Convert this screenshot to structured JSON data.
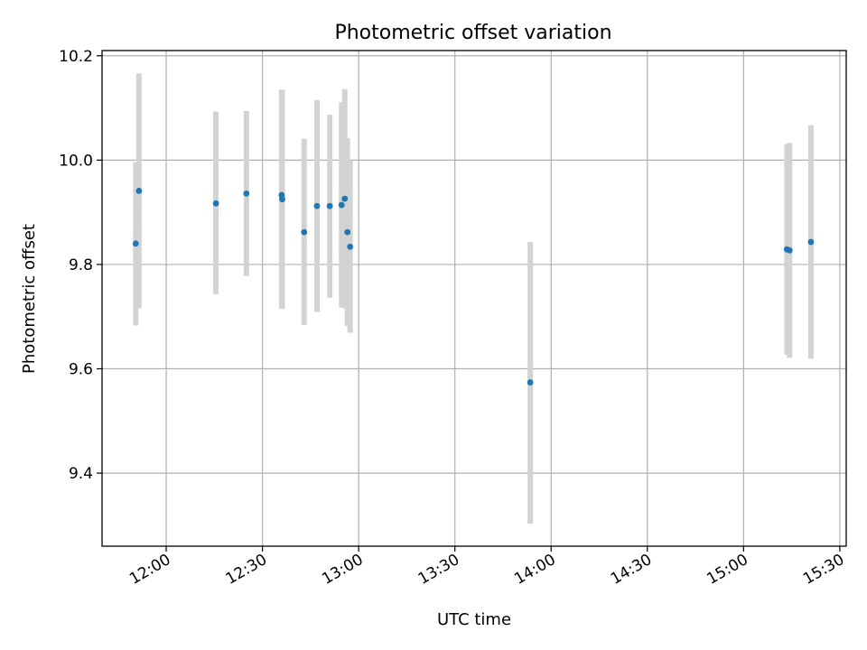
{
  "chart_data": {
    "type": "scatter",
    "title": "Photometric offset variation",
    "xlabel": "UTC time",
    "ylabel": "Photometric offset",
    "xlim": [
      "11:40",
      "15:32"
    ],
    "ylim": [
      9.26,
      10.21
    ],
    "x_ticks": [
      "12:00",
      "12:30",
      "13:00",
      "13:30",
      "14:00",
      "14:30",
      "15:00",
      "15:30"
    ],
    "y_ticks": [
      "9.4",
      "9.6",
      "9.8",
      "10.0",
      "10.2"
    ],
    "grid": true,
    "x_axis_format": "time HH:MM",
    "error_bar_color": "#d3d3d3",
    "point_color": "#1f77b4",
    "points": [
      {
        "t": "11:50:30",
        "y": 9.84,
        "lo": 9.683,
        "hi": 9.996
      },
      {
        "t": "11:51:30",
        "y": 9.941,
        "lo": 9.716,
        "hi": 10.166
      },
      {
        "t": "12:15:30",
        "y": 9.917,
        "lo": 9.743,
        "hi": 10.093
      },
      {
        "t": "12:25:00",
        "y": 9.936,
        "lo": 9.778,
        "hi": 10.094
      },
      {
        "t": "12:36:00",
        "y": 9.933,
        "lo": 9.715,
        "hi": 10.135
      },
      {
        "t": "12:36:10",
        "y": 9.925,
        "lo": 9.715,
        "hi": 10.135
      },
      {
        "t": "12:43:00",
        "y": 9.862,
        "lo": 9.684,
        "hi": 10.041
      },
      {
        "t": "12:47:00",
        "y": 9.912,
        "lo": 9.709,
        "hi": 10.115
      },
      {
        "t": "12:51:00",
        "y": 9.912,
        "lo": 9.736,
        "hi": 10.087
      },
      {
        "t": "12:54:40",
        "y": 9.914,
        "lo": 9.717,
        "hi": 10.111
      },
      {
        "t": "12:55:40",
        "y": 9.926,
        "lo": 9.716,
        "hi": 10.136
      },
      {
        "t": "12:56:30",
        "y": 9.862,
        "lo": 9.682,
        "hi": 10.042
      },
      {
        "t": "12:57:20",
        "y": 9.834,
        "lo": 9.669,
        "hi": 9.999
      },
      {
        "t": "13:53:30",
        "y": 9.574,
        "lo": 9.303,
        "hi": 9.843
      },
      {
        "t": "15:13:30",
        "y": 9.829,
        "lo": 9.627,
        "hi": 10.031
      },
      {
        "t": "15:14:20",
        "y": 9.827,
        "lo": 9.621,
        "hi": 10.033
      },
      {
        "t": "15:21:00",
        "y": 9.843,
        "lo": 9.619,
        "hi": 10.067
      }
    ]
  }
}
